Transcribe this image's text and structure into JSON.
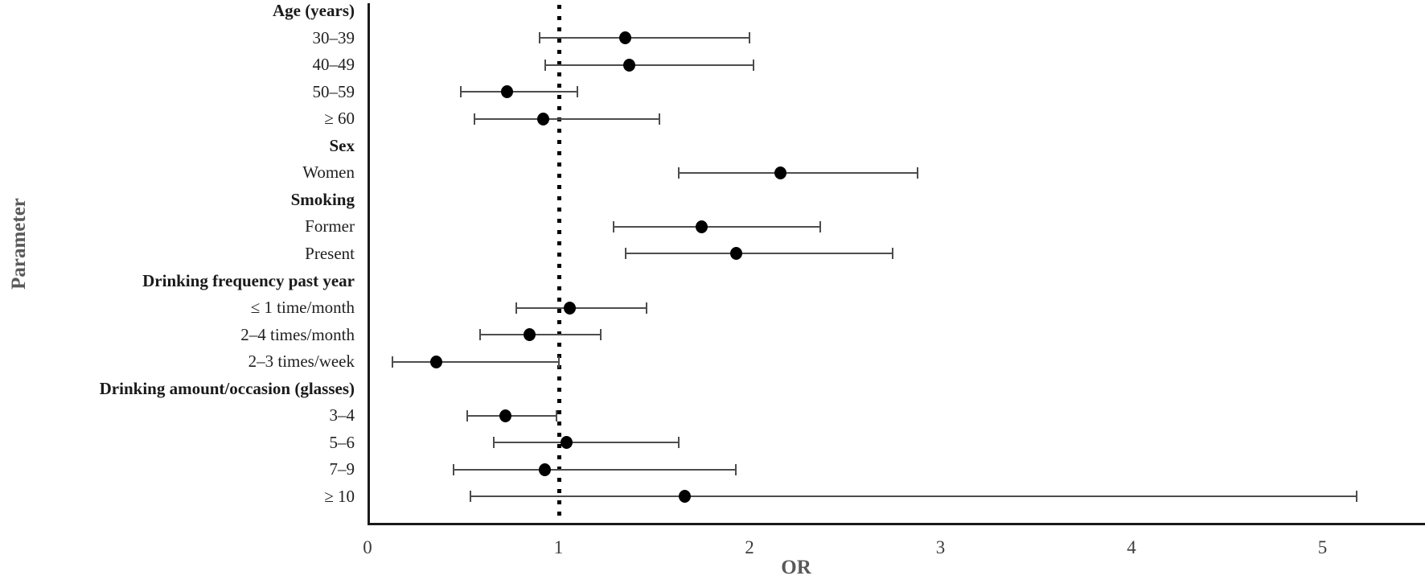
{
  "chart_data": {
    "type": "scatter",
    "subtype": "forest-plot",
    "title": "",
    "xlabel": "OR",
    "ylabel": "Parameter",
    "xlim": [
      0,
      5.54
    ],
    "x_ticks": [
      0,
      1,
      2,
      3,
      4,
      5
    ],
    "reference_line_x": 1,
    "grid": false,
    "legend": "none",
    "point_color": "#000000",
    "ci_color": "#4d4d4d",
    "axis_color": "#1a1a1a",
    "label_color": "#1f1f1f",
    "axis_title_color": "#595959",
    "rows": [
      {
        "label": "Age (years)",
        "header": true
      },
      {
        "label": "30–39",
        "or": 1.35,
        "ci_low": 0.9,
        "ci_high": 2.0
      },
      {
        "label": "40–49",
        "or": 1.37,
        "ci_low": 0.93,
        "ci_high": 2.02
      },
      {
        "label": "50–59",
        "or": 0.73,
        "ci_low": 0.49,
        "ci_high": 1.1
      },
      {
        "label": "≥ 60",
        "or": 0.92,
        "ci_low": 0.56,
        "ci_high": 1.53
      },
      {
        "label": "Sex",
        "header": true
      },
      {
        "label": "Women",
        "or": 2.16,
        "ci_low": 1.63,
        "ci_high": 2.88
      },
      {
        "label": "Smoking",
        "header": true
      },
      {
        "label": "Former",
        "or": 1.75,
        "ci_low": 1.29,
        "ci_high": 2.37
      },
      {
        "label": "Present",
        "or": 1.93,
        "ci_low": 1.35,
        "ci_high": 2.75
      },
      {
        "label": "Drinking frequency past year",
        "header": true
      },
      {
        "label": "≤ 1 time/month",
        "or": 1.06,
        "ci_low": 0.78,
        "ci_high": 1.46
      },
      {
        "label": "2–4 times/month",
        "or": 0.85,
        "ci_low": 0.59,
        "ci_high": 1.22
      },
      {
        "label": "2–3 times/week",
        "or": 0.36,
        "ci_low": 0.13,
        "ci_high": 1.0
      },
      {
        "label": "Drinking amount/occasion (glasses)",
        "header": true
      },
      {
        "label": "3–4",
        "or": 0.72,
        "ci_low": 0.52,
        "ci_high": 0.99
      },
      {
        "label": "5–6",
        "or": 1.04,
        "ci_low": 0.66,
        "ci_high": 1.63
      },
      {
        "label": "7–9",
        "or": 0.93,
        "ci_low": 0.45,
        "ci_high": 1.93
      },
      {
        "label": "≥ 10",
        "or": 1.66,
        "ci_low": 0.54,
        "ci_high": 5.18
      }
    ]
  }
}
